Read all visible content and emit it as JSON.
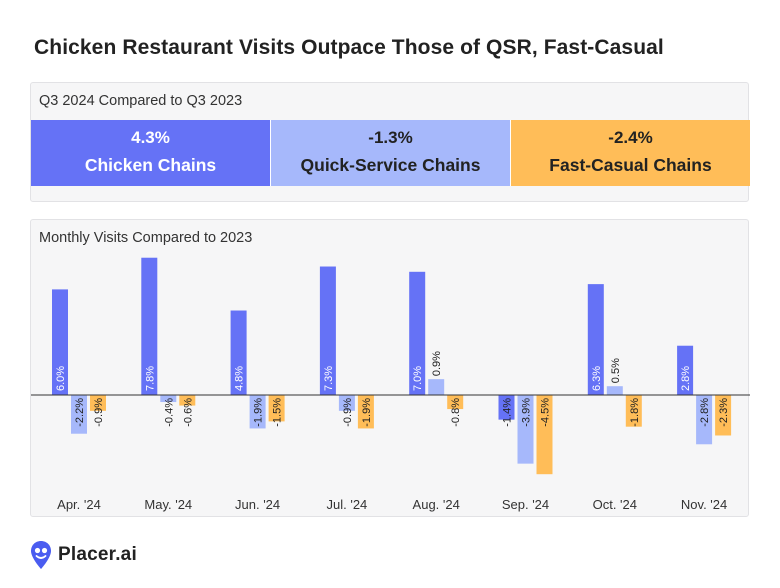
{
  "title": "Chicken Restaurant Visits Outpace Those of QSR, Fast-Casual",
  "q3_panel": {
    "label": "Q3 2024 Compared to Q3 2023",
    "cards": [
      {
        "value": "4.3%",
        "label": "Chicken Chains",
        "color": "#6572f6"
      },
      {
        "value": "-1.3%",
        "label": "Quick-Service Chains",
        "color": "#a6b8fb"
      },
      {
        "value": "-2.4%",
        "label": "Fast-Casual Chains",
        "color": "#ffbd58"
      }
    ]
  },
  "monthly_panel": {
    "label": "Monthly Visits Compared to 2023"
  },
  "chart_data": {
    "type": "bar",
    "title": "Monthly Visits Compared to 2023",
    "xlabel": "",
    "ylabel": "",
    "ylim": [
      -5.0,
      8.2
    ],
    "categories": [
      "Apr. '24",
      "May. '24",
      "Jun. '24",
      "Jul. '24",
      "Aug. '24",
      "Sep. '24",
      "Oct. '24",
      "Nov. '24"
    ],
    "series": [
      {
        "name": "Chicken Chains",
        "color": "#6572f6",
        "values": [
          6.0,
          7.8,
          4.8,
          7.3,
          7.0,
          -1.4,
          6.3,
          2.8
        ],
        "labels": [
          "6.0%",
          "7.8%",
          "4.8%",
          "7.3%",
          "7.0%",
          "-1.4%",
          "6.3%",
          "2.8%"
        ]
      },
      {
        "name": "Quick-Service Chains",
        "color": "#a6b8fb",
        "values": [
          -2.2,
          -0.4,
          -1.9,
          -0.9,
          0.9,
          -3.9,
          0.5,
          -2.8
        ],
        "labels": [
          "-2.2%",
          "-0.4%",
          "-1.9%",
          "-0.9%",
          "0.9%",
          "-3.9%",
          "0.5%",
          "-2.8%"
        ]
      },
      {
        "name": "Fast-Casual Chains",
        "color": "#ffbd58",
        "values": [
          -0.9,
          -0.6,
          -1.5,
          -1.9,
          -0.8,
          -4.5,
          -1.8,
          -2.3
        ],
        "labels": [
          "-0.9%",
          "-0.6%",
          "-1.5%",
          "-1.9%",
          "-0.8%",
          "-4.5%",
          "-1.8%",
          "-2.3%"
        ]
      }
    ]
  },
  "footer": {
    "brand": "Placer.ai",
    "logo_icon": "placer-pin-icon",
    "logo_color": "#4a5cf0"
  }
}
